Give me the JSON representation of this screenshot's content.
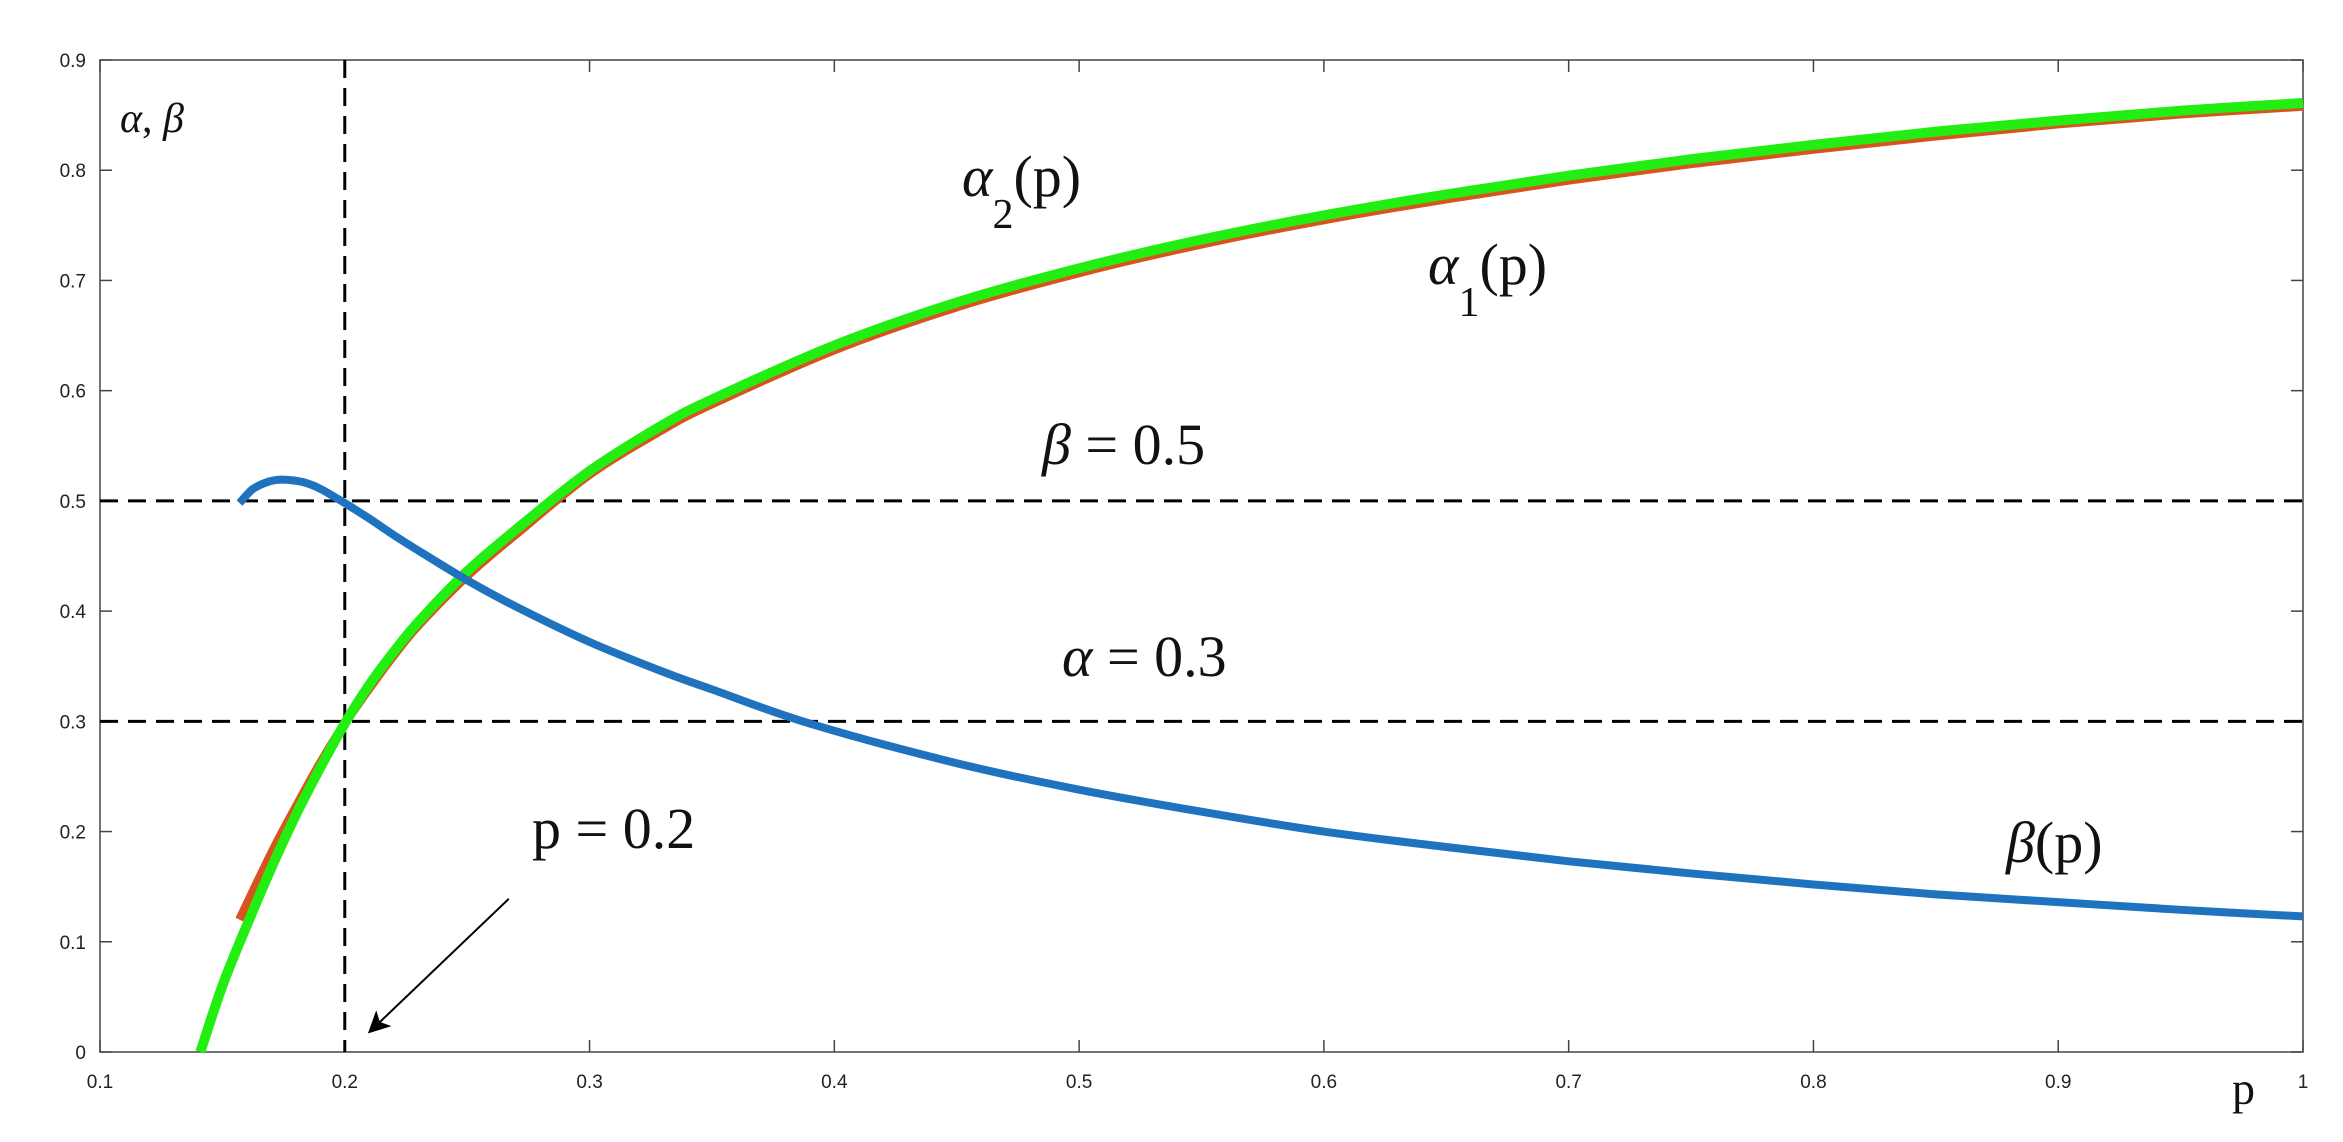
{
  "chart_data": {
    "type": "line",
    "title": "",
    "xlabel": "p",
    "ylabel_parts": {
      "a": "α",
      "sep": ", ",
      "b": "β"
    },
    "xlim": [
      0.1,
      1
    ],
    "ylim": [
      0,
      0.9
    ],
    "xticks": [
      0.1,
      0.2,
      0.3,
      0.4,
      0.5,
      0.6,
      0.7,
      0.8,
      0.9,
      1
    ],
    "xtick_labels": [
      "0.1",
      "0.2",
      "0.3",
      "0.4",
      "0.5",
      "0.6",
      "0.7",
      "0.8",
      "0.9",
      "1"
    ],
    "yticks": [
      0,
      0.1,
      0.2,
      0.3,
      0.4,
      0.5,
      0.6,
      0.7,
      0.8,
      0.9
    ],
    "ytick_labels": [
      "0",
      "0.1",
      "0.2",
      "0.3",
      "0.4",
      "0.5",
      "0.6",
      "0.7",
      "0.8",
      "0.9"
    ],
    "grid": false,
    "series": [
      {
        "key": "alpha1",
        "color": "#d9531e",
        "x": [
          0.157,
          0.17,
          0.18,
          0.19,
          0.2,
          0.21,
          0.22,
          0.23,
          0.25,
          0.27,
          0.3,
          0.33,
          0.35,
          0.4,
          0.45,
          0.5,
          0.55,
          0.6,
          0.65,
          0.7,
          0.75,
          0.8,
          0.85,
          0.9,
          0.95,
          1.0
        ],
        "y": [
          0.12,
          0.18,
          0.222,
          0.262,
          0.298,
          0.33,
          0.36,
          0.387,
          0.432,
          0.47,
          0.524,
          0.565,
          0.588,
          0.637,
          0.676,
          0.707,
          0.733,
          0.755,
          0.774,
          0.791,
          0.806,
          0.819,
          0.831,
          0.842,
          0.851,
          0.858
        ]
      },
      {
        "key": "alpha2",
        "color": "#22ee11",
        "x": [
          0.141,
          0.15,
          0.16,
          0.17,
          0.18,
          0.19,
          0.2,
          0.21,
          0.22,
          0.23,
          0.25,
          0.27,
          0.3,
          0.33,
          0.35,
          0.4,
          0.45,
          0.5,
          0.55,
          0.6,
          0.65,
          0.7,
          0.75,
          0.8,
          0.85,
          0.9,
          0.95,
          1.0
        ],
        "y": [
          0.0,
          0.06,
          0.115,
          0.167,
          0.215,
          0.258,
          0.298,
          0.333,
          0.363,
          0.39,
          0.436,
          0.474,
          0.527,
          0.569,
          0.592,
          0.641,
          0.68,
          0.711,
          0.737,
          0.759,
          0.778,
          0.795,
          0.81,
          0.823,
          0.835,
          0.845,
          0.854,
          0.861
        ]
      },
      {
        "key": "beta",
        "color": "#1f72bd",
        "x": [
          0.157,
          0.162,
          0.167,
          0.172,
          0.177,
          0.183,
          0.19,
          0.2,
          0.21,
          0.22,
          0.23,
          0.25,
          0.27,
          0.3,
          0.33,
          0.35,
          0.39,
          0.45,
          0.5,
          0.55,
          0.6,
          0.65,
          0.7,
          0.75,
          0.8,
          0.85,
          0.9,
          0.95,
          1.0
        ],
        "y": [
          0.498,
          0.51,
          0.516,
          0.519,
          0.519,
          0.517,
          0.511,
          0.498,
          0.484,
          0.469,
          0.455,
          0.428,
          0.404,
          0.372,
          0.345,
          0.329,
          0.298,
          0.262,
          0.238,
          0.218,
          0.2,
          0.186,
          0.173,
          0.162,
          0.152,
          0.143,
          0.136,
          0.129,
          0.123
        ]
      }
    ],
    "reference_lines": [
      {
        "orientation": "h",
        "value": 0.5
      },
      {
        "orientation": "h",
        "value": 0.3
      },
      {
        "orientation": "v",
        "value": 0.2
      }
    ],
    "annotations": {
      "alpha2": {
        "sym": "α",
        "sub": "2",
        "rest": "(p)"
      },
      "alpha1": {
        "sym": "α",
        "sub": "1",
        "rest": "(p)"
      },
      "beta_curve": {
        "sym": "β",
        "rest": "(p)"
      },
      "beta_eq": {
        "sym": "β",
        "rest": " = 0.5"
      },
      "alpha_eq": {
        "sym": "α",
        "rest": " = 0.3"
      },
      "p_eq": {
        "text": "p = 0.2",
        "arrow_to": [
          0.21,
          0.018
        ],
        "arrow_from": [
          0.267,
          0.139
        ]
      }
    }
  }
}
